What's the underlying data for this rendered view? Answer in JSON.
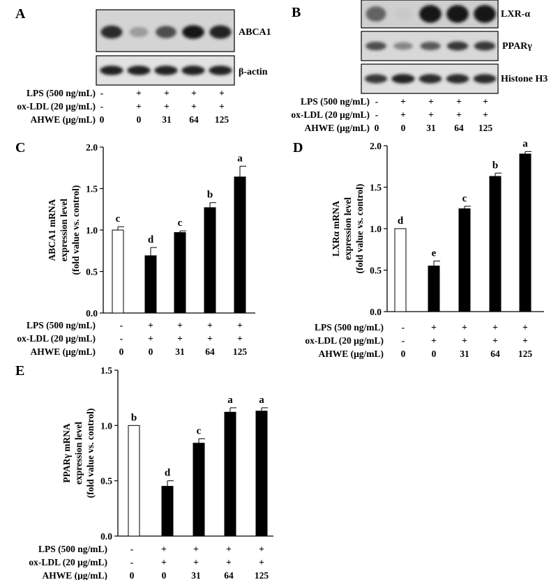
{
  "panels": {
    "A": "A",
    "B": "B",
    "C": "C",
    "D": "D",
    "E": "E"
  },
  "treatment": {
    "rows": [
      "LPS (500 ng/mL)",
      "ox-LDL (20 μg/mL)",
      "AHWE (μg/mL)"
    ],
    "lps": [
      "-",
      "+",
      "+",
      "+",
      "+"
    ],
    "oxldl": [
      "-",
      "+",
      "+",
      "+",
      "+"
    ],
    "ahwe": [
      "0",
      "0",
      "31",
      "64",
      "125"
    ]
  },
  "blotA": {
    "labels": [
      "ABCA1",
      "β-actin"
    ],
    "intensity": [
      [
        0.85,
        0.35,
        0.7,
        0.95,
        0.9
      ],
      [
        0.9,
        0.9,
        0.9,
        0.9,
        0.9
      ]
    ]
  },
  "blotB": {
    "labels": [
      "LXR-α",
      "PPARγ",
      "Histone H3"
    ],
    "intensity": [
      [
        0.6,
        0.15,
        0.95,
        0.95,
        0.95
      ],
      [
        0.7,
        0.45,
        0.65,
        0.8,
        0.8
      ],
      [
        0.8,
        0.9,
        0.85,
        0.85,
        0.85
      ]
    ]
  },
  "chart_data": [
    {
      "type": "bar",
      "panel": "C",
      "categories": [
        "0",
        "0",
        "31",
        "64",
        "125"
      ],
      "values": [
        1.0,
        0.69,
        0.97,
        1.27,
        1.64
      ],
      "errors": [
        0.04,
        0.1,
        0.02,
        0.06,
        0.13
      ],
      "significance": [
        "c",
        "d",
        "c",
        "b",
        "a"
      ],
      "bar_fill": [
        "#ffffff",
        "#000000",
        "#000000",
        "#000000",
        "#000000"
      ],
      "ylabel": [
        "ABCA1 mRNA",
        "expression level",
        "(fold value vs. control)"
      ],
      "ylim": [
        0,
        2.0
      ],
      "yticks": [
        "0.0",
        "0.5",
        "1.0",
        "1.5",
        "2.0"
      ]
    },
    {
      "type": "bar",
      "panel": "D",
      "categories": [
        "0",
        "0",
        "31",
        "64",
        "125"
      ],
      "values": [
        1.0,
        0.55,
        1.24,
        1.63,
        1.9
      ],
      "errors": [
        0.0,
        0.06,
        0.03,
        0.04,
        0.03
      ],
      "significance": [
        "d",
        "e",
        "c",
        "b",
        "a"
      ],
      "bar_fill": [
        "#ffffff",
        "#000000",
        "#000000",
        "#000000",
        "#000000"
      ],
      "ylabel": [
        "LXRα mRNA",
        "expression level",
        "(fold value vs. control)"
      ],
      "ylim": [
        0,
        2.0
      ],
      "yticks": [
        "0.0",
        "0.5",
        "1.0",
        "1.5",
        "2.0"
      ]
    },
    {
      "type": "bar",
      "panel": "E",
      "categories": [
        "0",
        "0",
        "31",
        "64",
        "125"
      ],
      "values": [
        1.0,
        0.45,
        0.84,
        1.12,
        1.13
      ],
      "errors": [
        0.0,
        0.05,
        0.04,
        0.04,
        0.03
      ],
      "significance": [
        "b",
        "d",
        "c",
        "a",
        "a"
      ],
      "bar_fill": [
        "#ffffff",
        "#000000",
        "#000000",
        "#000000",
        "#000000"
      ],
      "ylabel": [
        "PPARγ mRNA",
        "expression level",
        "(fold value vs. control)"
      ],
      "ylim": [
        0,
        1.5
      ],
      "yticks": [
        "0.0",
        "0.5",
        "1.0",
        "1.5"
      ]
    }
  ]
}
